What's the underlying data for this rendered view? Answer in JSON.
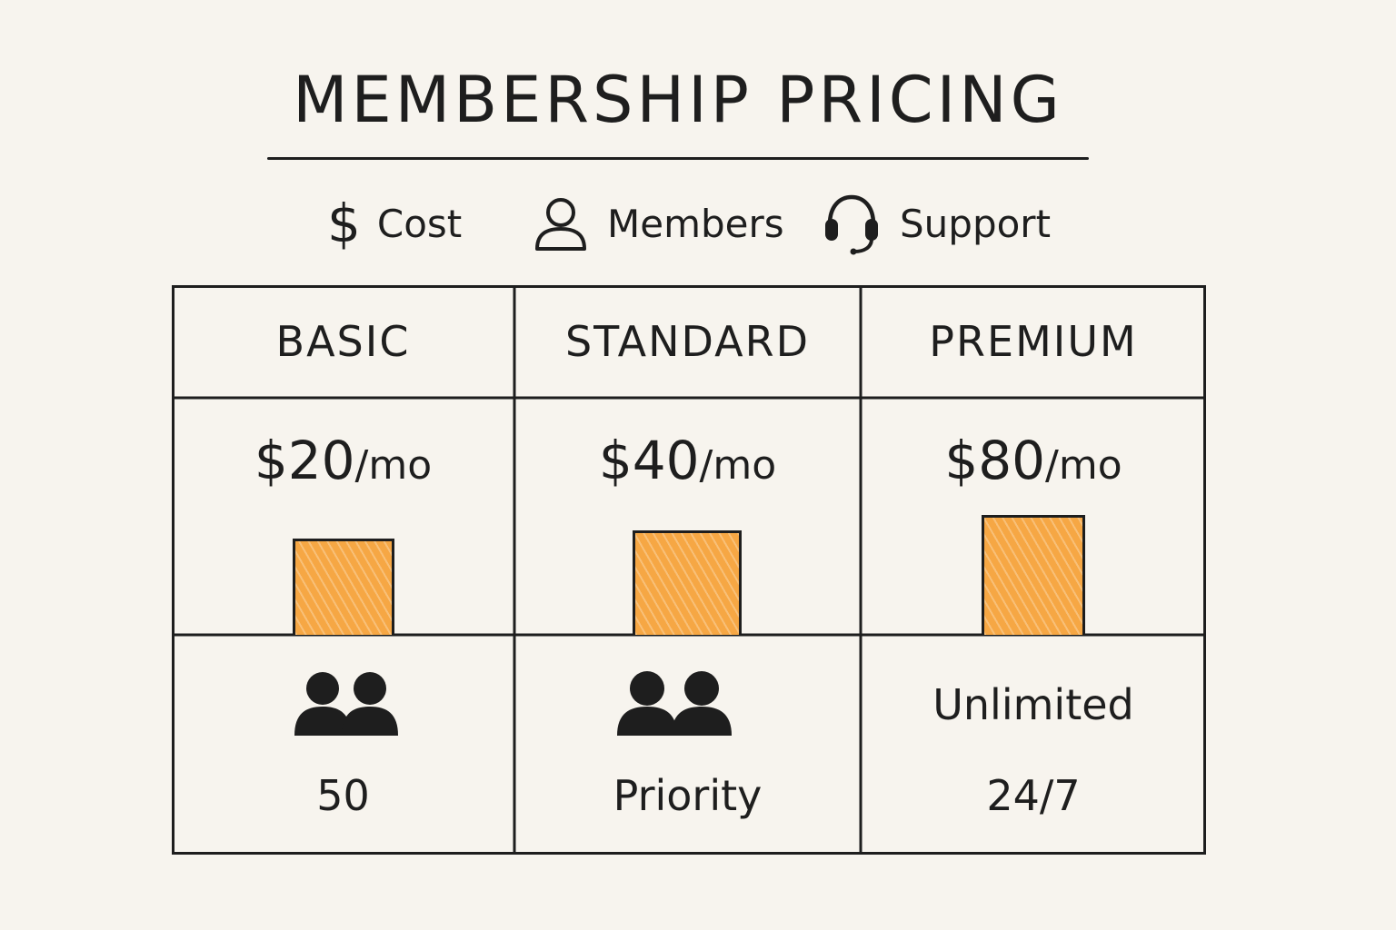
{
  "title": "MEMBERSHIP PRICING",
  "legend": {
    "cost": {
      "icon": "dollar-icon",
      "label": "Cost"
    },
    "members": {
      "icon": "person-icon",
      "label": "Members"
    },
    "support": {
      "icon": "headset-icon",
      "label": "Support"
    }
  },
  "colors": {
    "bar": "#f6a744",
    "ink": "#1e1e1e",
    "background": "#f7f4ee"
  },
  "tiers": [
    {
      "name": "BASIC",
      "price_amount": "$20",
      "price_unit": "/mo",
      "price_value": 20,
      "members_icon": "group-icon",
      "support": "50"
    },
    {
      "name": "STANDARD",
      "price_amount": "$40",
      "price_unit": "/mo",
      "price_value": 40,
      "members_icon": "group-icon",
      "support": "Priority"
    },
    {
      "name": "PREMIUM",
      "price_amount": "$80",
      "price_unit": "/mo",
      "price_value": 80,
      "members": "Unlimited",
      "support": "24/7"
    }
  ]
}
